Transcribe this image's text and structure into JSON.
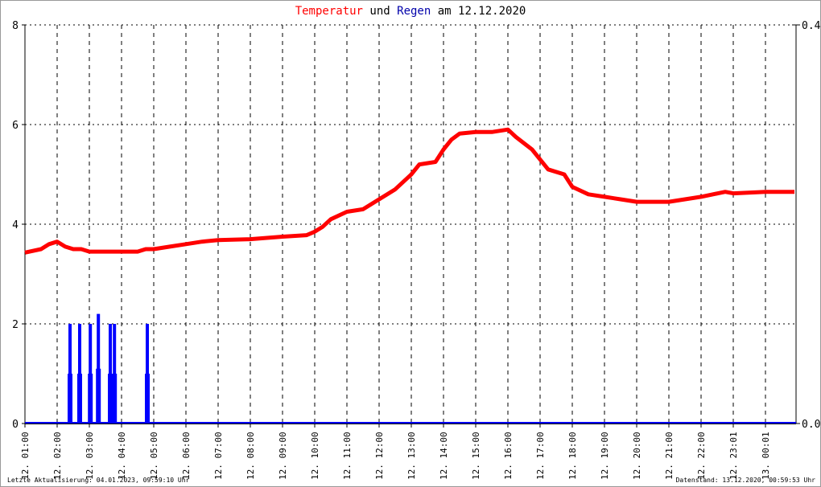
{
  "title": {
    "part1": "Temperatur",
    "part2": " und ",
    "part3": "Regen",
    "part4": " am 12.12.2020"
  },
  "colors": {
    "temperature": "#ff0000",
    "rain": "#0000ff",
    "grid": "#000000"
  },
  "footer": {
    "left": "Letzte Aktualisierung: 04.01.2023, 09:59:10 Uhr",
    "right": "Datenstand: 13.12.2020, 00:59:53 Uhr"
  },
  "chart_data": {
    "type": "line",
    "grid": true,
    "x_ticks": [
      "12. 01:00",
      "12. 02:00",
      "12. 03:00",
      "12. 04:00",
      "12. 05:00",
      "12. 06:00",
      "12. 07:00",
      "12. 08:00",
      "12. 09:00",
      "12. 10:00",
      "12. 11:00",
      "12. 12:00",
      "12. 13:00",
      "12. 14:00",
      "12. 15:00",
      "12. 16:00",
      "12. 17:00",
      "12. 18:00",
      "12. 19:00",
      "12. 20:00",
      "12. 21:00",
      "12. 22:00",
      "12. 23:01",
      "13. 00:01"
    ],
    "xlim_hours": [
      1,
      24.95
    ],
    "y_left": {
      "lim": [
        0,
        8
      ],
      "ticks": [
        "0",
        "2",
        "4",
        "6",
        "8"
      ]
    },
    "y_right": {
      "lim": [
        0,
        0.4
      ],
      "ticks": [
        "0.0",
        "0.4"
      ]
    },
    "series": [
      {
        "name": "Temperatur",
        "axis": "left",
        "type": "line",
        "x_hours": [
          1,
          1.5,
          1.75,
          2,
          2.25,
          2.5,
          2.75,
          3,
          3.5,
          4,
          4.5,
          4.75,
          5,
          5.5,
          6,
          6.5,
          7,
          8,
          9,
          9.75,
          10,
          10.25,
          10.5,
          11,
          11.5,
          12,
          12.5,
          13,
          13.25,
          13.75,
          14,
          14.25,
          14.5,
          15,
          15.5,
          16,
          16.25,
          16.75,
          17,
          17.25,
          17.75,
          18,
          18.5,
          19,
          19.5,
          20,
          21,
          21.5,
          22,
          22.75,
          23,
          24,
          24.9
        ],
        "y": [
          3.43,
          3.5,
          3.6,
          3.65,
          3.55,
          3.5,
          3.5,
          3.45,
          3.45,
          3.45,
          3.45,
          3.5,
          3.5,
          3.55,
          3.6,
          3.65,
          3.68,
          3.7,
          3.75,
          3.78,
          3.85,
          3.95,
          4.1,
          4.25,
          4.3,
          4.5,
          4.7,
          5.0,
          5.2,
          5.25,
          5.5,
          5.7,
          5.82,
          5.85,
          5.85,
          5.9,
          5.75,
          5.5,
          5.3,
          5.1,
          5.0,
          4.75,
          4.6,
          4.55,
          4.5,
          4.45,
          4.45,
          4.5,
          4.55,
          4.65,
          4.62,
          4.65,
          4.65
        ]
      },
      {
        "name": "Regen",
        "axis": "right",
        "type": "bar",
        "x_hours": [
          2.4,
          2.7,
          3.03,
          3.28,
          3.65,
          3.78,
          4.8
        ],
        "y": [
          0.1,
          0.1,
          0.1,
          0.11,
          0.1,
          0.1,
          0.1
        ]
      }
    ]
  }
}
